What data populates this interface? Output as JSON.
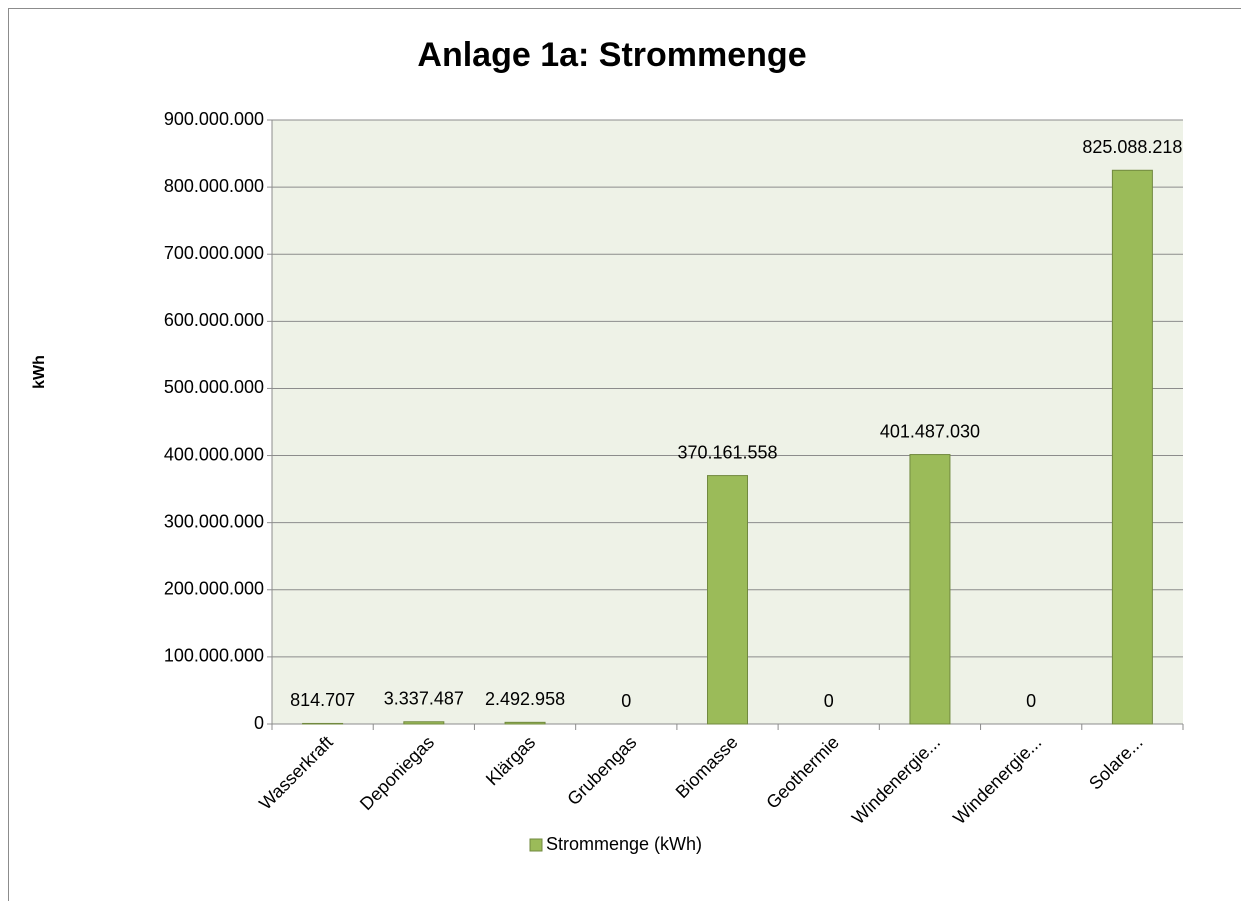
{
  "chart_data": {
    "type": "bar",
    "title": "Anlage 1a: Strommenge",
    "y_label": "kWh",
    "categories": [
      "Wasserkraft",
      "Deponiegas",
      "Klärgas",
      "Grubengas",
      "Biomasse",
      "Geothermie",
      "Windenergie...",
      "Windenergie...",
      "Solare..."
    ],
    "series": [
      {
        "name": "Strommenge (kWh)",
        "color": "#9bbb59",
        "values": [
          814707,
          3337487,
          2492958,
          0,
          370161558,
          0,
          401487030,
          0,
          825088218
        ],
        "value_labels": [
          "814.707",
          "3.337.487",
          "2.492.958",
          "0",
          "370.161.558",
          "0",
          "401.487.030",
          "0",
          "825.088.218"
        ]
      }
    ],
    "ylim": [
      0,
      900000000
    ],
    "yticks": [
      0,
      {
        "value": 100000000,
        "label": "100.000.000"
      },
      {
        "value": 200000000,
        "label": "200.000.000"
      },
      {
        "value": 300000000,
        "label": "300.000.000"
      },
      {
        "value": 400000000,
        "label": "400.000.000"
      },
      {
        "value": 500000000,
        "label": "500.000.000"
      },
      {
        "value": 600000000,
        "label": "600.000.000"
      },
      {
        "value": 700000000,
        "label": "700.000.000"
      },
      {
        "value": 800000000,
        "label": "800.000.000"
      },
      {
        "value": 900000000,
        "label": "900.000.000"
      }
    ],
    "grid": true,
    "legend": "bottom"
  }
}
